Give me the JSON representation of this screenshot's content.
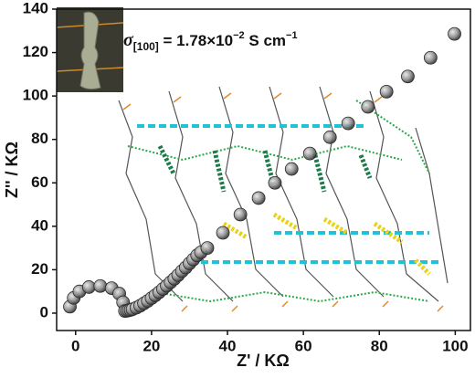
{
  "chart_data": {
    "type": "scatter",
    "annotation": {
      "symbol": "σ",
      "subscript": "[100]",
      "text": " = 1.78×10",
      "exponent": "−2",
      "unit": " S cm",
      "unit_exponent": "−1"
    },
    "x_label": "Z' / KΩ",
    "y_label": "Z'' / KΩ",
    "xlim": [
      -5,
      104
    ],
    "ylim": [
      -8,
      140
    ],
    "xticks": [
      0,
      20,
      40,
      60,
      80,
      100
    ],
    "yticks": [
      0,
      20,
      40,
      60,
      80,
      100,
      120,
      140
    ],
    "color": "#8f8f8f",
    "x": [
      -1.5,
      -0.5,
      1,
      3.5,
      6.5,
      9.5,
      11.5,
      12.5,
      13,
      13.5,
      14,
      14.5,
      15,
      16,
      17,
      18,
      19,
      20,
      21,
      22,
      23,
      24,
      25,
      26,
      27,
      28,
      29,
      30,
      31,
      32,
      33,
      34.7,
      38.8,
      43.4,
      48.2,
      52.5,
      56.9,
      61.7,
      67,
      71.8,
      77,
      81.9,
      87.5,
      93.5,
      99.8
    ],
    "values": [
      3,
      7,
      10,
      12,
      12.5,
      11.5,
      9,
      5,
      1,
      1.1,
      1.3,
      1.5,
      1.8,
      2.5,
      3.4,
      4.5,
      5.6,
      6.9,
      8.2,
      9.6,
      11.1,
      12.6,
      14.2,
      15.8,
      17.5,
      19.3,
      21,
      22.9,
      24.7,
      26.6,
      28,
      30,
      37,
      45.4,
      53,
      60,
      66.4,
      73.5,
      81,
      87.4,
      95,
      102,
      109,
      117.6,
      128.6
    ]
  }
}
